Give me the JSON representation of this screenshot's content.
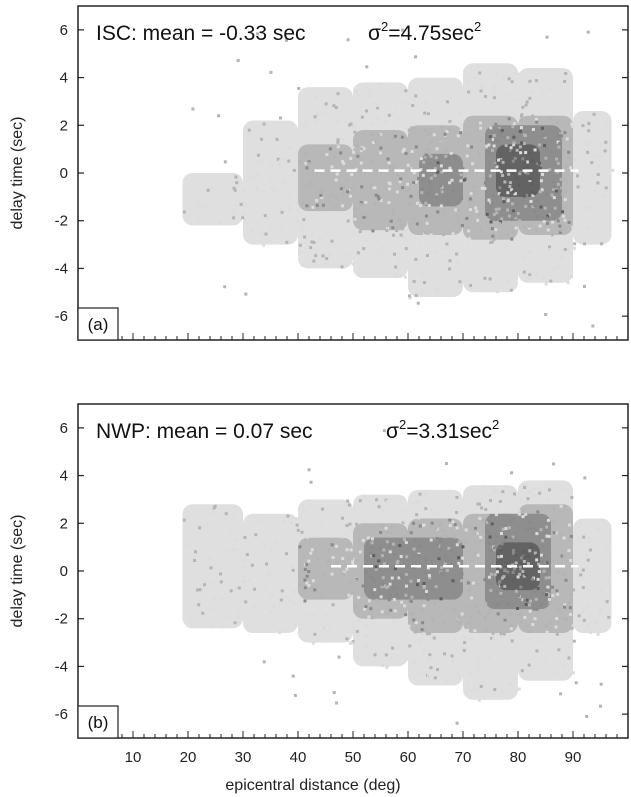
{
  "chart_data": [
    {
      "type": "heatmap",
      "panel_label": "(a)",
      "title_prefix": "ISC: mean = -0.33 sec",
      "sigma_symbol": "σ",
      "variance_exponent": "2",
      "variance_text": "=4.75sec",
      "variance_unit_exponent": "2",
      "ylabel": "delay time (sec)",
      "xlabel": "",
      "xlim": [
        0,
        100
      ],
      "ylim": [
        -7,
        7
      ],
      "yticks": [
        "6",
        "4",
        "2",
        "0",
        "-2",
        "-4",
        "-6"
      ],
      "xticks": [],
      "mean_line": {
        "y": 0.1,
        "x_start": 43,
        "x_end": 91
      },
      "density_bands": [
        {
          "x": [
            19,
            30
          ],
          "y_low": -2.2,
          "y_high": 0.0,
          "level": 1
        },
        {
          "x": [
            30,
            40
          ],
          "y_low": -3.0,
          "y_high": 2.2,
          "level": 1
        },
        {
          "x": [
            40,
            50
          ],
          "y_low": -4.0,
          "y_high": 3.6,
          "level": 1
        },
        {
          "x": [
            50,
            60
          ],
          "y_low": -4.4,
          "y_high": 3.8,
          "level": 1
        },
        {
          "x": [
            60,
            70
          ],
          "y_low": -5.2,
          "y_high": 4.0,
          "level": 1
        },
        {
          "x": [
            70,
            80
          ],
          "y_low": -5.0,
          "y_high": 4.6,
          "level": 1
        },
        {
          "x": [
            80,
            90
          ],
          "y_low": -4.6,
          "y_high": 4.4,
          "level": 1
        },
        {
          "x": [
            90,
            97
          ],
          "y_low": -3.0,
          "y_high": 2.6,
          "level": 1
        },
        {
          "x": [
            40,
            50
          ],
          "y_low": -1.6,
          "y_high": 1.2,
          "level": 2
        },
        {
          "x": [
            50,
            60
          ],
          "y_low": -2.4,
          "y_high": 1.8,
          "level": 2
        },
        {
          "x": [
            60,
            70
          ],
          "y_low": -2.6,
          "y_high": 2.0,
          "level": 2
        },
        {
          "x": [
            70,
            80
          ],
          "y_low": -2.8,
          "y_high": 2.4,
          "level": 2
        },
        {
          "x": [
            80,
            90
          ],
          "y_low": -2.6,
          "y_high": 2.4,
          "level": 2
        },
        {
          "x": [
            62,
            70
          ],
          "y_low": -1.4,
          "y_high": 0.8,
          "level": 3
        },
        {
          "x": [
            74,
            88
          ],
          "y_low": -2.0,
          "y_high": 2.0,
          "level": 3
        },
        {
          "x": [
            76,
            84
          ],
          "y_low": -1.0,
          "y_high": 1.2,
          "level": 4
        }
      ]
    },
    {
      "type": "heatmap",
      "panel_label": "(b)",
      "title_prefix": "NWP: mean = 0.07 sec",
      "sigma_symbol": "σ",
      "variance_exponent": "2",
      "variance_text": "=3.31sec",
      "variance_unit_exponent": "2",
      "ylabel": "delay time (sec)",
      "xlabel": "epicentral distance (deg)",
      "xlim": [
        0,
        100
      ],
      "ylim": [
        -7,
        7
      ],
      "yticks": [
        "6",
        "4",
        "2",
        "0",
        "-2",
        "-4",
        "-6"
      ],
      "xticks": [
        "10",
        "20",
        "30",
        "40",
        "50",
        "60",
        "70",
        "80",
        "90"
      ],
      "mean_line": {
        "y": 0.2,
        "x_start": 46,
        "x_end": 91
      },
      "density_bands": [
        {
          "x": [
            19,
            30
          ],
          "y_low": -2.4,
          "y_high": 2.8,
          "level": 1
        },
        {
          "x": [
            30,
            40
          ],
          "y_low": -2.6,
          "y_high": 2.4,
          "level": 1
        },
        {
          "x": [
            40,
            50
          ],
          "y_low": -3.0,
          "y_high": 3.0,
          "level": 1
        },
        {
          "x": [
            50,
            60
          ],
          "y_low": -4.0,
          "y_high": 3.2,
          "level": 1
        },
        {
          "x": [
            60,
            70
          ],
          "y_low": -4.8,
          "y_high": 3.4,
          "level": 1
        },
        {
          "x": [
            70,
            80
          ],
          "y_low": -5.4,
          "y_high": 3.6,
          "level": 1
        },
        {
          "x": [
            80,
            90
          ],
          "y_low": -4.6,
          "y_high": 3.8,
          "level": 1
        },
        {
          "x": [
            90,
            97
          ],
          "y_low": -2.6,
          "y_high": 2.2,
          "level": 1
        },
        {
          "x": [
            40,
            50
          ],
          "y_low": -1.2,
          "y_high": 1.4,
          "level": 2
        },
        {
          "x": [
            50,
            60
          ],
          "y_low": -2.0,
          "y_high": 2.0,
          "level": 2
        },
        {
          "x": [
            60,
            70
          ],
          "y_low": -2.6,
          "y_high": 2.2,
          "level": 2
        },
        {
          "x": [
            70,
            80
          ],
          "y_low": -2.6,
          "y_high": 2.4,
          "level": 2
        },
        {
          "x": [
            80,
            90
          ],
          "y_low": -2.6,
          "y_high": 2.8,
          "level": 2
        },
        {
          "x": [
            52,
            70
          ],
          "y_low": -1.2,
          "y_high": 1.4,
          "level": 3
        },
        {
          "x": [
            74,
            86
          ],
          "y_low": -1.6,
          "y_high": 2.4,
          "level": 3
        },
        {
          "x": [
            76,
            84
          ],
          "y_low": -0.8,
          "y_high": 1.2,
          "level": 4
        }
      ]
    }
  ],
  "colors": {
    "level_1": "#dcdcdc",
    "level_2": "#b4b4b4",
    "level_3": "#8a8a8a",
    "level_4": "#5e5e5e",
    "mean_line": "#ffffff",
    "axis": "#222222"
  }
}
